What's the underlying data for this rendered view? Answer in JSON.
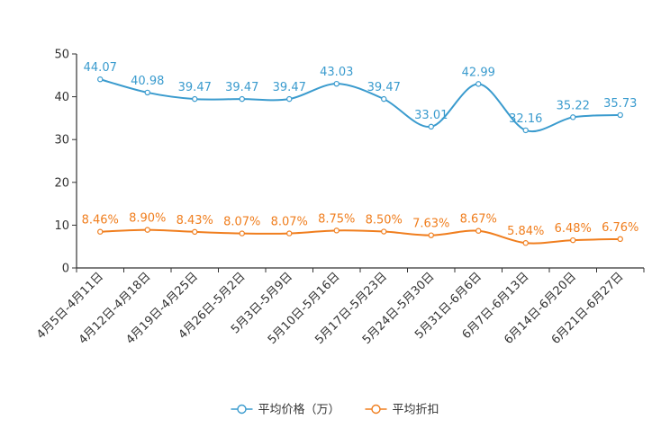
{
  "chart_data": {
    "type": "line",
    "title": "",
    "xlabel": "",
    "ylabel": "",
    "ylim": [
      0,
      50
    ],
    "yticks": [
      0,
      10,
      20,
      30,
      40,
      50
    ],
    "grid": false,
    "legend_position": "bottom-center",
    "categories": [
      "4月5日-4月11日",
      "4月12日-4月18日",
      "4月19日-4月25日",
      "4月26日-5月2日",
      "5月3日-5月9日",
      "5月10日-5月16日",
      "5月17日-5月23日",
      "5月24日-5月30日",
      "5月31日-6月6日",
      "6月7日-6月13日",
      "6月14日-6月20日",
      "6月21日-6月27日"
    ],
    "series": [
      {
        "name": "平均价格（万）",
        "color": "#3a9bce",
        "values": [
          44.07,
          40.98,
          39.47,
          39.47,
          39.47,
          43.03,
          39.47,
          33.01,
          42.99,
          32.16,
          35.22,
          35.73
        ],
        "labels": [
          "44.07",
          "40.98",
          "39.47",
          "39.47",
          "39.47",
          "43.03",
          "39.47",
          "33.01",
          "42.99",
          "32.16",
          "35.22",
          "35.73"
        ]
      },
      {
        "name": "平均折扣",
        "color": "#f07e1e",
        "values": [
          8.46,
          8.9,
          8.43,
          8.07,
          8.07,
          8.75,
          8.5,
          7.63,
          8.67,
          5.84,
          6.48,
          6.76
        ],
        "labels": [
          "8.46%",
          "8.90%",
          "8.43%",
          "8.07%",
          "8.07%",
          "8.75%",
          "8.50%",
          "7.63%",
          "8.67%",
          "5.84%",
          "6.48%",
          "6.76%"
        ]
      }
    ]
  }
}
